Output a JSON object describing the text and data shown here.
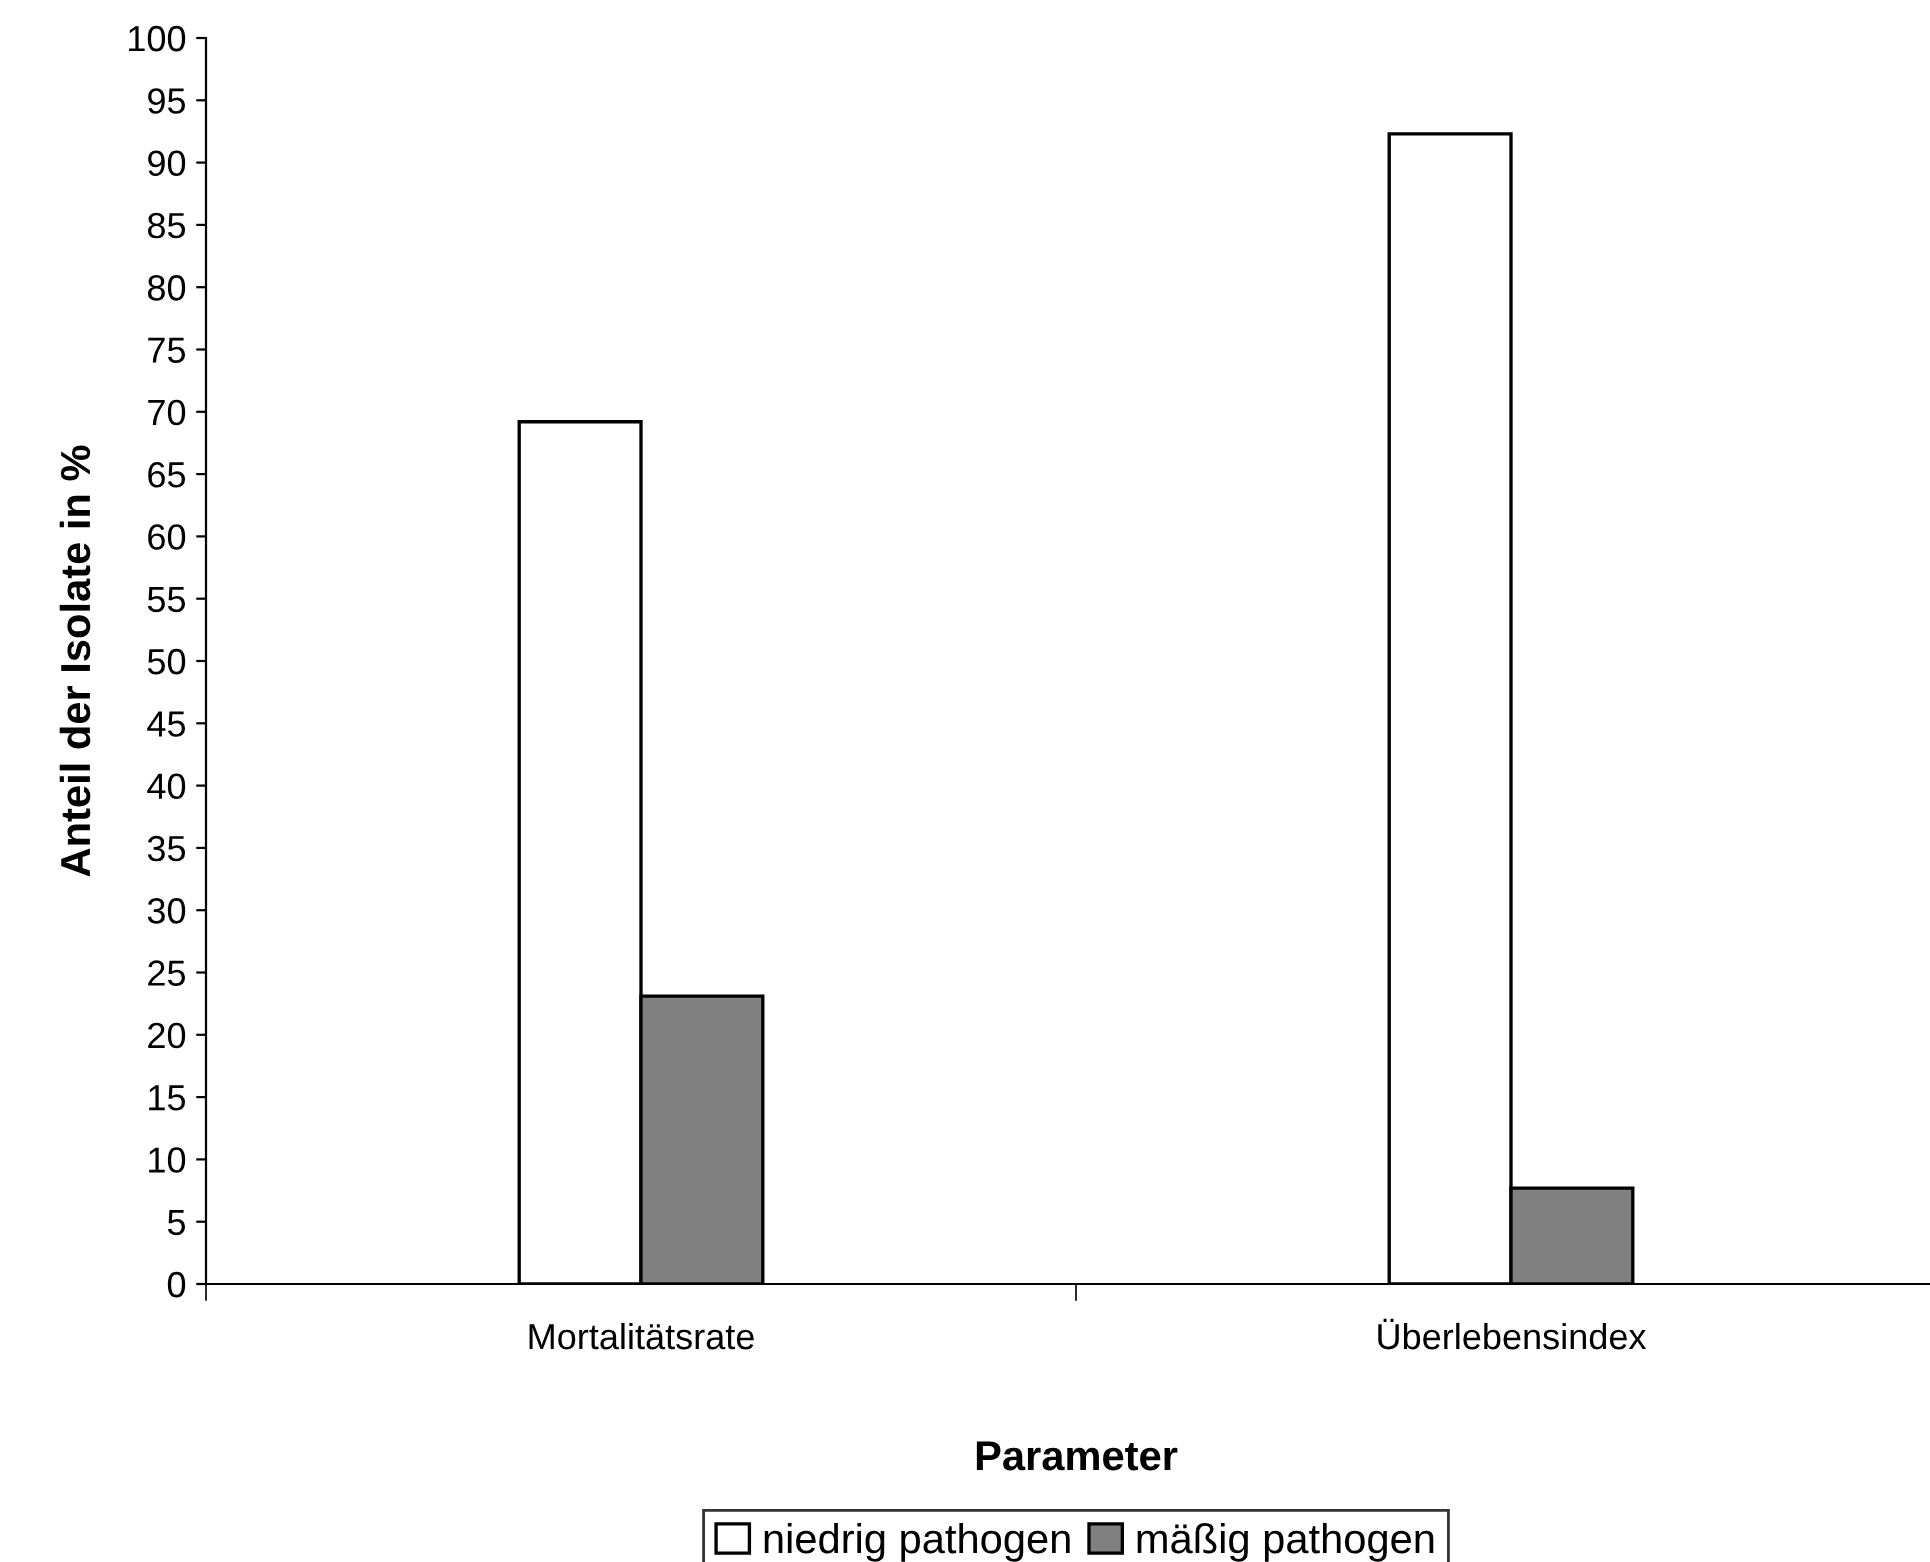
{
  "chart_data": {
    "type": "bar",
    "xlabel": "Parameter",
    "ylabel": "Anteil der Isolate in %",
    "categories": [
      "Mortalitätsrate",
      "Überlebensindex"
    ],
    "series": [
      {
        "name": "niedrig pathogen",
        "color": "#ffffff",
        "values": [
          69.2,
          92.3
        ]
      },
      {
        "name": "mäßig pathogen",
        "color": "#808080",
        "values": [
          23.1,
          7.7
        ]
      }
    ],
    "ylim": [
      0,
      100
    ],
    "yticks": [
      0,
      5,
      10,
      15,
      20,
      25,
      30,
      35,
      40,
      45,
      50,
      55,
      60,
      65,
      70,
      75,
      80,
      85,
      90,
      95,
      100
    ],
    "grid": false,
    "legend": "bottom"
  }
}
